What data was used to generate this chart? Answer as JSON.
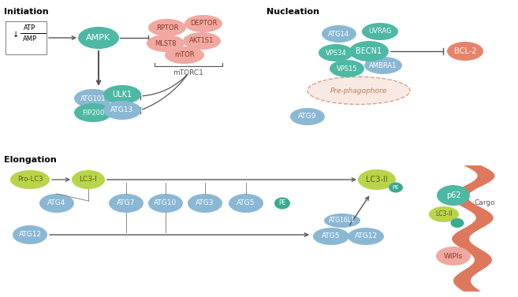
{
  "bg_color": "#ffffff",
  "colors": {
    "teal": "#4db8a4",
    "blue_light": "#8ab8d4",
    "blue_mid": "#6aaac8",
    "pink_light": "#f0a8a0",
    "pink_salmon": "#e8836a",
    "green_yellow": "#b8d44a",
    "pe_teal": "#3aaa90",
    "pre_phago_fill": "#f8e8e0",
    "dark_text": "#555555",
    "pink_text": "#8a3a2a"
  },
  "sections": {
    "initiation_label": [
      5,
      10
    ],
    "nucleation_label": [
      338,
      10
    ],
    "elongation_label": [
      5,
      198
    ]
  }
}
